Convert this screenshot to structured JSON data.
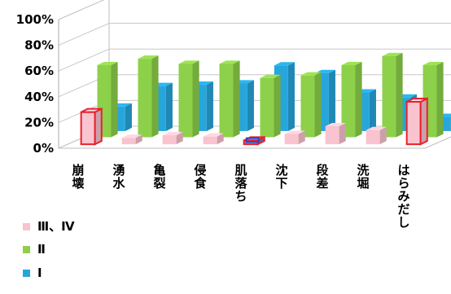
{
  "chart_data": {
    "type": "bar",
    "categories": [
      "崩壊",
      "湧水",
      "亀裂",
      "侵食",
      "肌落ち",
      "沈下",
      "段差",
      "洗堀",
      "はらみだし"
    ],
    "series": [
      {
        "name": "Ⅲ、Ⅳ",
        "values": [
          25,
          5,
          7,
          6,
          3,
          8,
          14,
          11,
          33
        ],
        "color": "#f9c3cf"
      },
      {
        "name": "Ⅱ",
        "values": [
          56,
          61,
          57,
          57,
          46,
          48,
          56,
          63,
          56
        ],
        "color": "#8dd04a"
      },
      {
        "name": "Ⅰ",
        "values": [
          19,
          35,
          36,
          37,
          51,
          45,
          30,
          26,
          11
        ],
        "color": "#27a6dc"
      }
    ],
    "highlighted": [
      "崩壊",
      "肌落ち",
      "はらみだし"
    ],
    "highlight_color": "#e8222a",
    "yticks": [
      "0%",
      "20%",
      "40%",
      "60%",
      "80%",
      "100%"
    ],
    "ylim": [
      0,
      100
    ],
    "legend_position": "bottom-left",
    "grid": true
  }
}
